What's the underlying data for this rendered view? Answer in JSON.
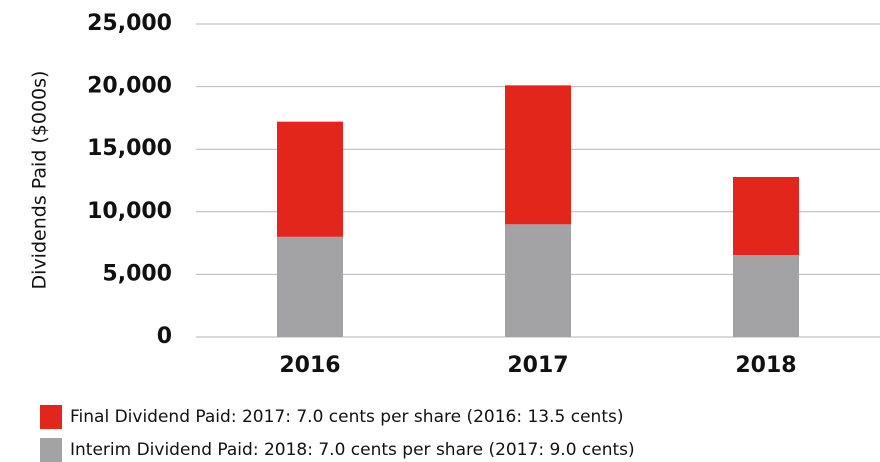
{
  "chart_data": {
    "type": "stacked_bar",
    "y_label": "Dividends Paid ($000s)",
    "categories": [
      "2016",
      "2017",
      "2018"
    ],
    "series": [
      {
        "name": "Final Dividend Paid: 2017: 7.0 cents per share (2016: 13.5 cents)",
        "color": "#e2261c",
        "values": [
          9200,
          11100,
          6230
        ]
      },
      {
        "name": "Interim Dividend Paid: 2018: 7.0 cents per share (2017: 9.0 cents)",
        "color": "#a3a3a5",
        "values": [
          8000,
          9000,
          6550
        ]
      }
    ],
    "ylim": [
      0,
      25000
    ],
    "yticks": [
      0,
      {
        "value": 5000,
        "label": "5,000"
      },
      {
        "value": 10000,
        "label": "10,000"
      },
      {
        "value": 15000,
        "label": "15,000"
      },
      {
        "value": 20000,
        "label": "20,000"
      },
      {
        "value": 25000,
        "label": "25,000"
      }
    ],
    "grid": true
  }
}
